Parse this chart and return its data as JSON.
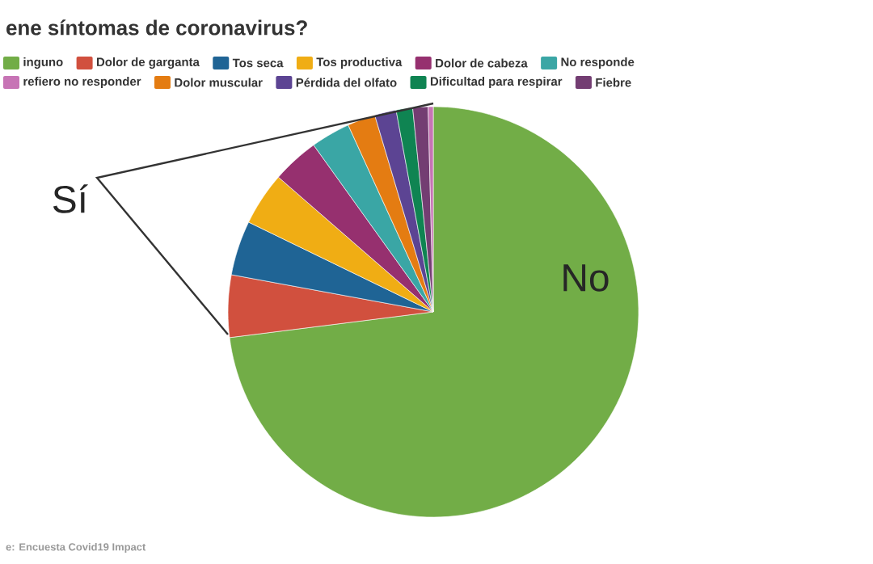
{
  "chart_data": {
    "type": "pie",
    "title": "ene síntomas de coronavirus?",
    "categories": [
      "inguno",
      "Dolor de garganta",
      "Tos seca",
      "Tos productiva",
      "Dolor de cabeza",
      "No responde",
      "Dolor muscular",
      "Pérdida del olfato",
      "Dificultad para respirar",
      "Fiebre",
      "refiero no responder"
    ],
    "values": [
      73.0,
      4.9,
      4.3,
      4.2,
      3.7,
      3.1,
      2.2,
      1.7,
      1.3,
      1.2,
      0.4
    ],
    "colors": [
      "#72ad47",
      "#d1503e",
      "#1f6495",
      "#f0ad14",
      "#96306f",
      "#3aa6a5",
      "#e47c12",
      "#5c4493",
      "#0f8452",
      "#733d72",
      "#c774b5"
    ],
    "legend": "top",
    "annotations": [
      "Sí",
      "No",
      "e: Encuesta Covid19 Impact"
    ]
  }
}
